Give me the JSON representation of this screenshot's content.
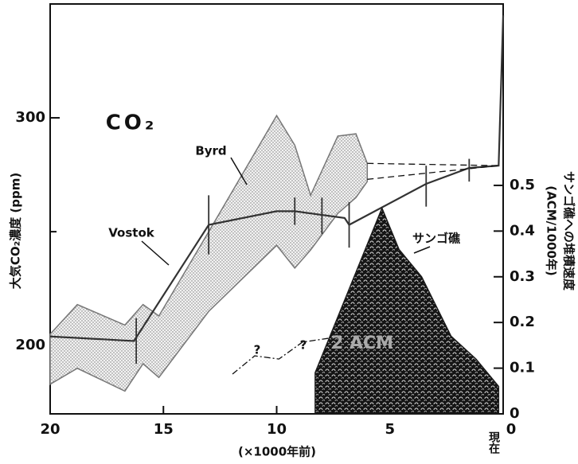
{
  "chart_data": {
    "type": "line",
    "xlim": [
      20,
      0
    ],
    "xticks": [
      20,
      15,
      10,
      5,
      0
    ],
    "xlabel": "(×1000年前)",
    "x_end_label": "現在",
    "ylim": [
      170,
      350
    ],
    "yticks": [
      200,
      300
    ],
    "yminor": [
      250
    ],
    "ylabel": "大気CO₂濃度 (ppm)",
    "y2lim": [
      0,
      0.897
    ],
    "y2ticks": [
      0,
      0.1,
      0.2,
      0.3,
      0.4,
      0.5
    ],
    "y2label": [
      "サンゴ礁への堆積速度",
      "(ACM/1000年)"
    ],
    "co2_label": "CO₂",
    "annotations": [
      "?",
      "?",
      "2 ACM"
    ],
    "series": [
      {
        "name": "Byrd",
        "kind": "band",
        "color": "#777",
        "x": [
          20,
          18.8,
          16.7,
          15.9,
          15.2,
          13,
          10,
          9.2,
          8.5,
          7.3,
          6.5,
          6.0
        ],
        "high": [
          205,
          218,
          209,
          218,
          213,
          250,
          301,
          288,
          266,
          292,
          293,
          280
        ],
        "low": [
          183,
          190,
          180,
          192,
          186,
          215,
          244,
          234,
          242,
          258,
          265,
          272
        ]
      },
      {
        "name": "Vostok",
        "kind": "line",
        "color": "#333",
        "x": [
          20,
          16.3,
          13,
          10,
          9.2,
          7,
          6.8,
          3.4,
          1.5,
          0.2,
          0
        ],
        "values": [
          204,
          202,
          253,
          259,
          259,
          256,
          253,
          271,
          278,
          279,
          345
        ]
      },
      {
        "kind": "errorbar",
        "color": "#333",
        "x": [
          16.2,
          13,
          9.2,
          8,
          6.8,
          3.4,
          1.5
        ],
        "values": [
          202,
          253,
          259,
          257,
          253,
          270,
          277
        ],
        "errors": [
          10,
          13,
          6,
          8,
          10,
          9,
          5
        ]
      },
      {
        "kind": "line",
        "style": "dashed",
        "color": "#111",
        "x": [
          6,
          0.2
        ],
        "values": [
          280,
          279
        ]
      },
      {
        "kind": "line",
        "style": "dashed",
        "color": "#111",
        "x": [
          6,
          0.2
        ],
        "values": [
          273,
          279
        ]
      },
      {
        "kind": "line",
        "style": "dashdot",
        "axis": "y2",
        "color": "#111",
        "x": [
          11.95,
          10.97,
          9.9,
          8.86,
          7.63,
          6.75
        ],
        "values": [
          0.087,
          0.127,
          0.12,
          0.157,
          0.166,
          0.17
        ]
      },
      {
        "name": "サンゴ礁",
        "kind": "area",
        "axis": "y2",
        "color": "#1a1a1a",
        "x": [
          8.3,
          8.3,
          5.35,
          4.6,
          3.6,
          2.3,
          1.2,
          0.2,
          0.2
        ],
        "values": [
          0,
          0.09,
          0.45,
          0.36,
          0.3,
          0.17,
          0.12,
          0.06,
          0
        ]
      }
    ]
  }
}
